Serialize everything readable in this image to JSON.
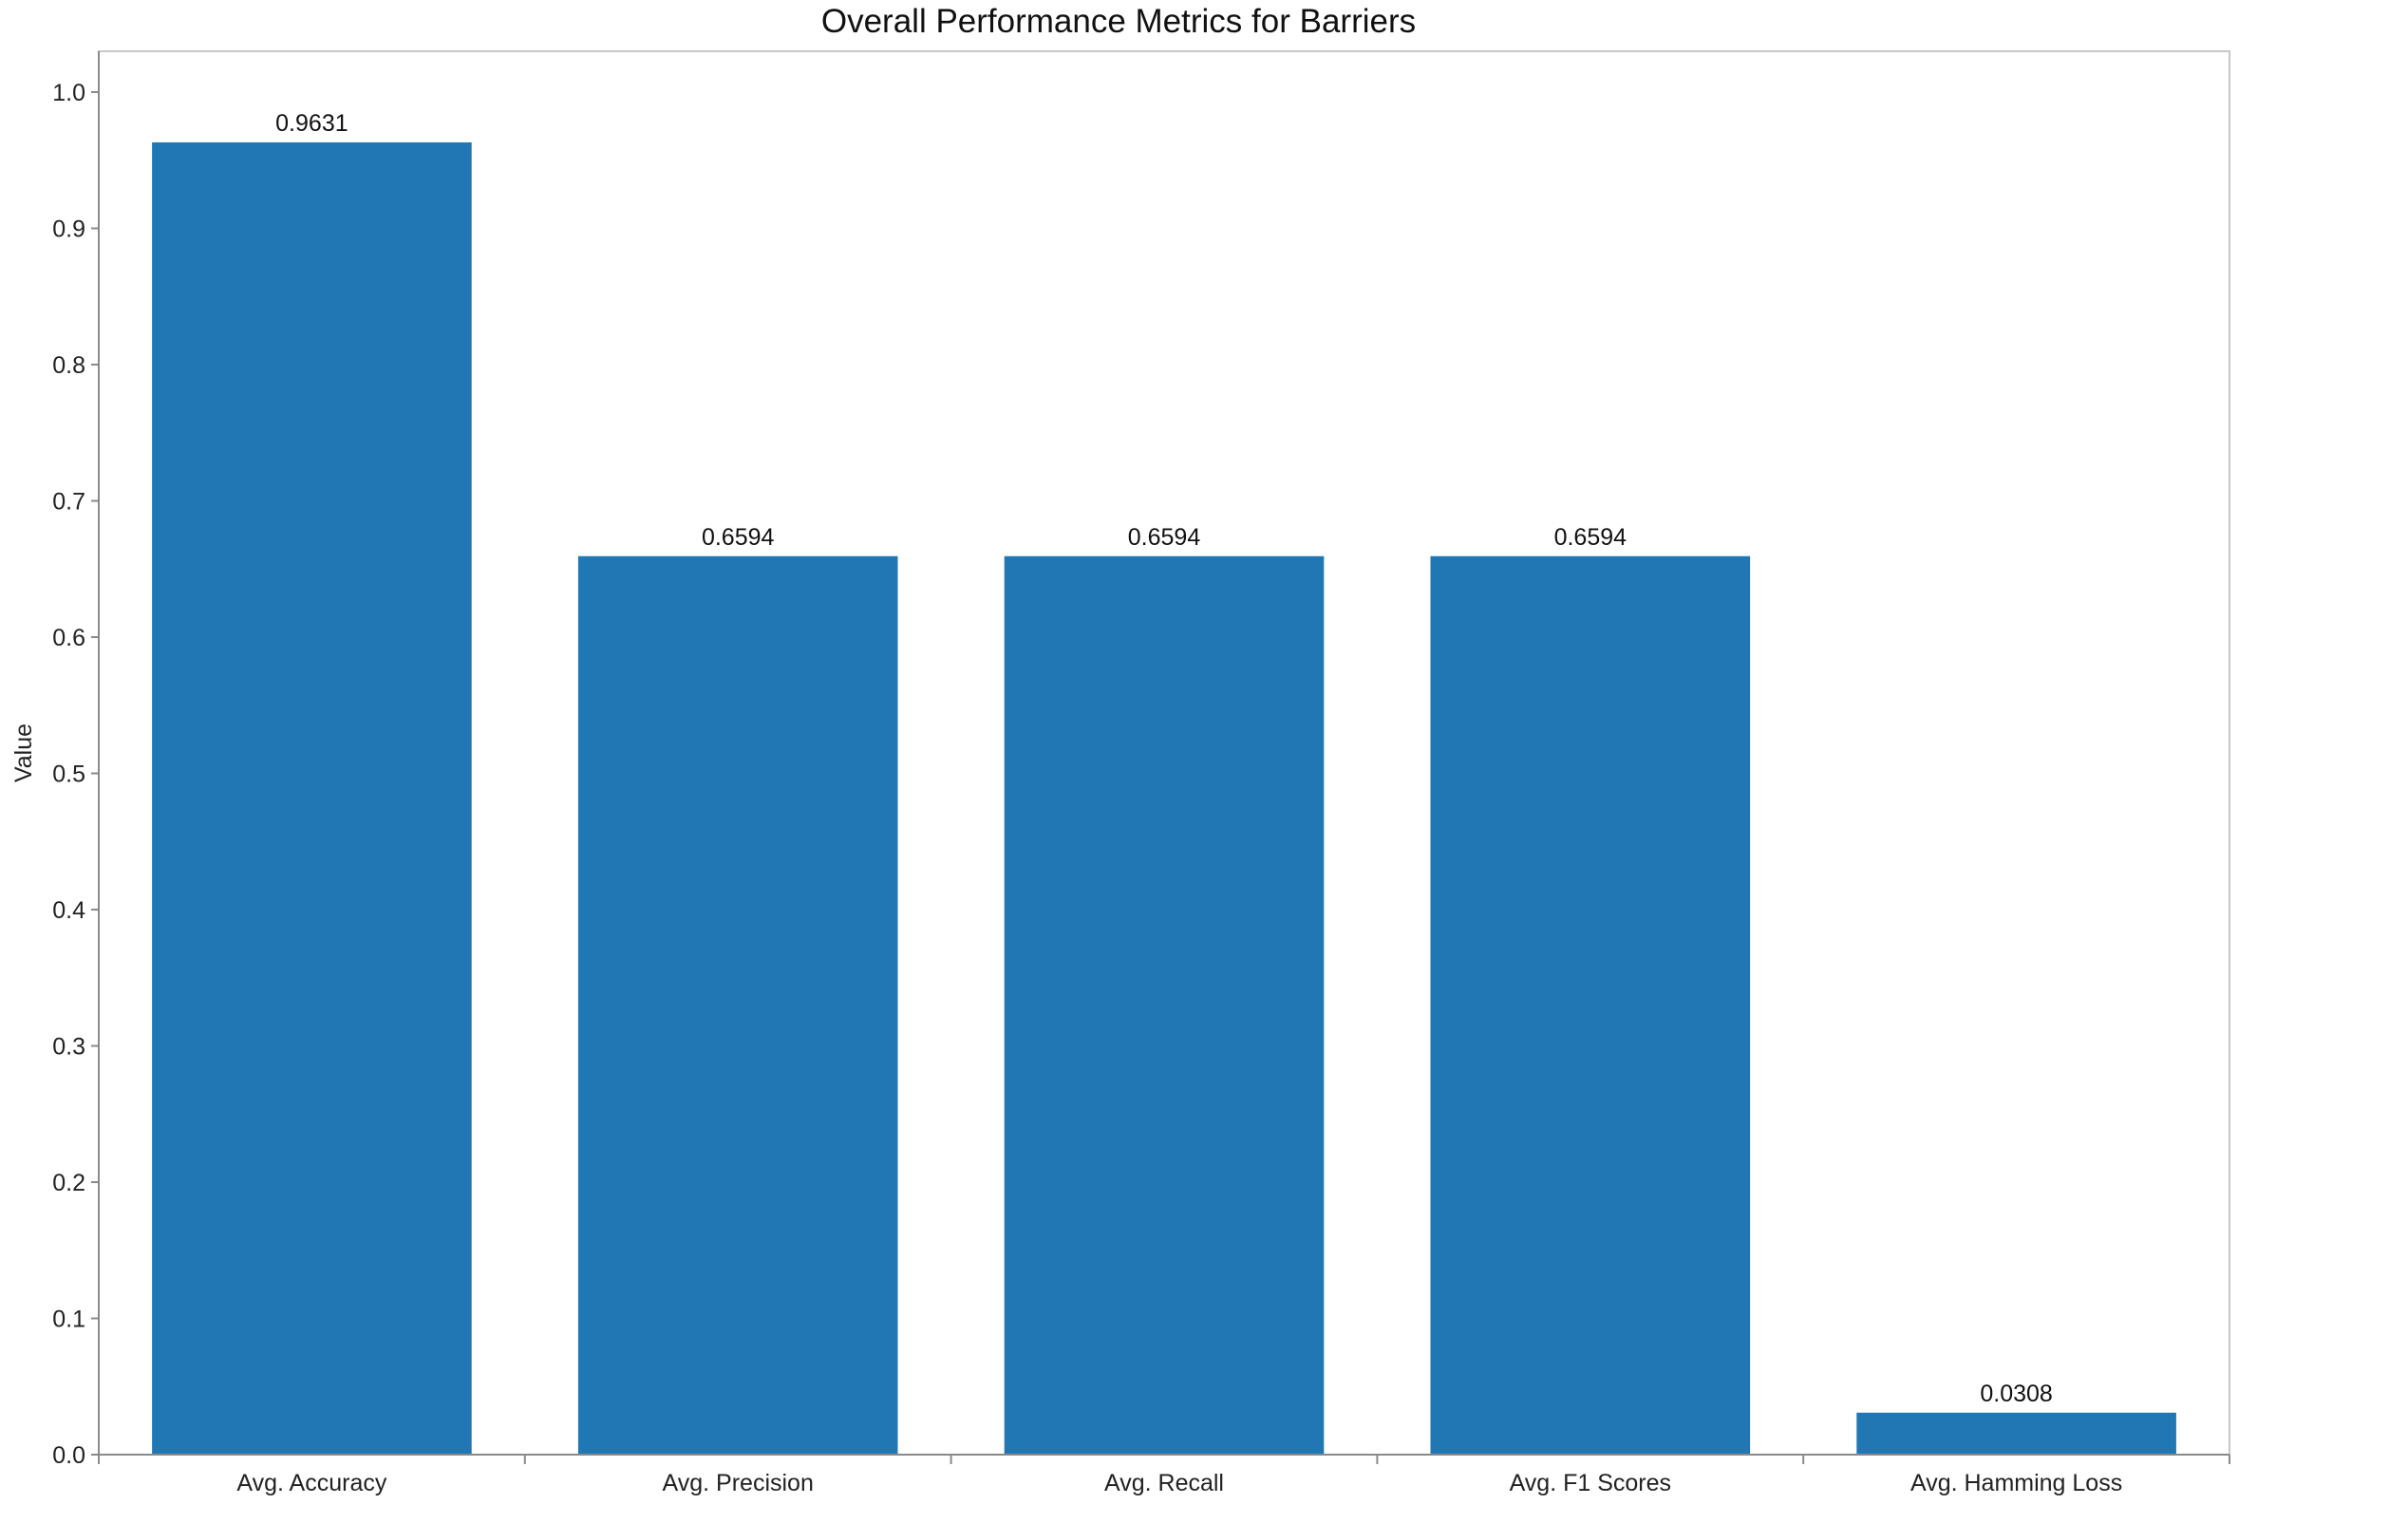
{
  "chart_data": {
    "type": "bar",
    "title": "Overall Performance Metrics for Barriers",
    "xlabel": "",
    "ylabel": "Value",
    "categories": [
      "Avg. Accuracy",
      "Avg. Precision",
      "Avg. Recall",
      "Avg. F1 Scores",
      "Avg. Hamming Loss"
    ],
    "values": [
      0.9631,
      0.6594,
      0.6594,
      0.6594,
      0.0308
    ],
    "value_labels": [
      "0.9631",
      "0.6594",
      "0.6594",
      "0.6594",
      "0.0308"
    ],
    "ylim": [
      0,
      1.0
    ],
    "yticks": [
      "0.0",
      "0.1",
      "0.2",
      "0.3",
      "0.4",
      "0.5",
      "0.6",
      "0.7",
      "0.8",
      "0.9",
      "1.0"
    ],
    "grid": false,
    "bar_color": "#2077b4"
  }
}
